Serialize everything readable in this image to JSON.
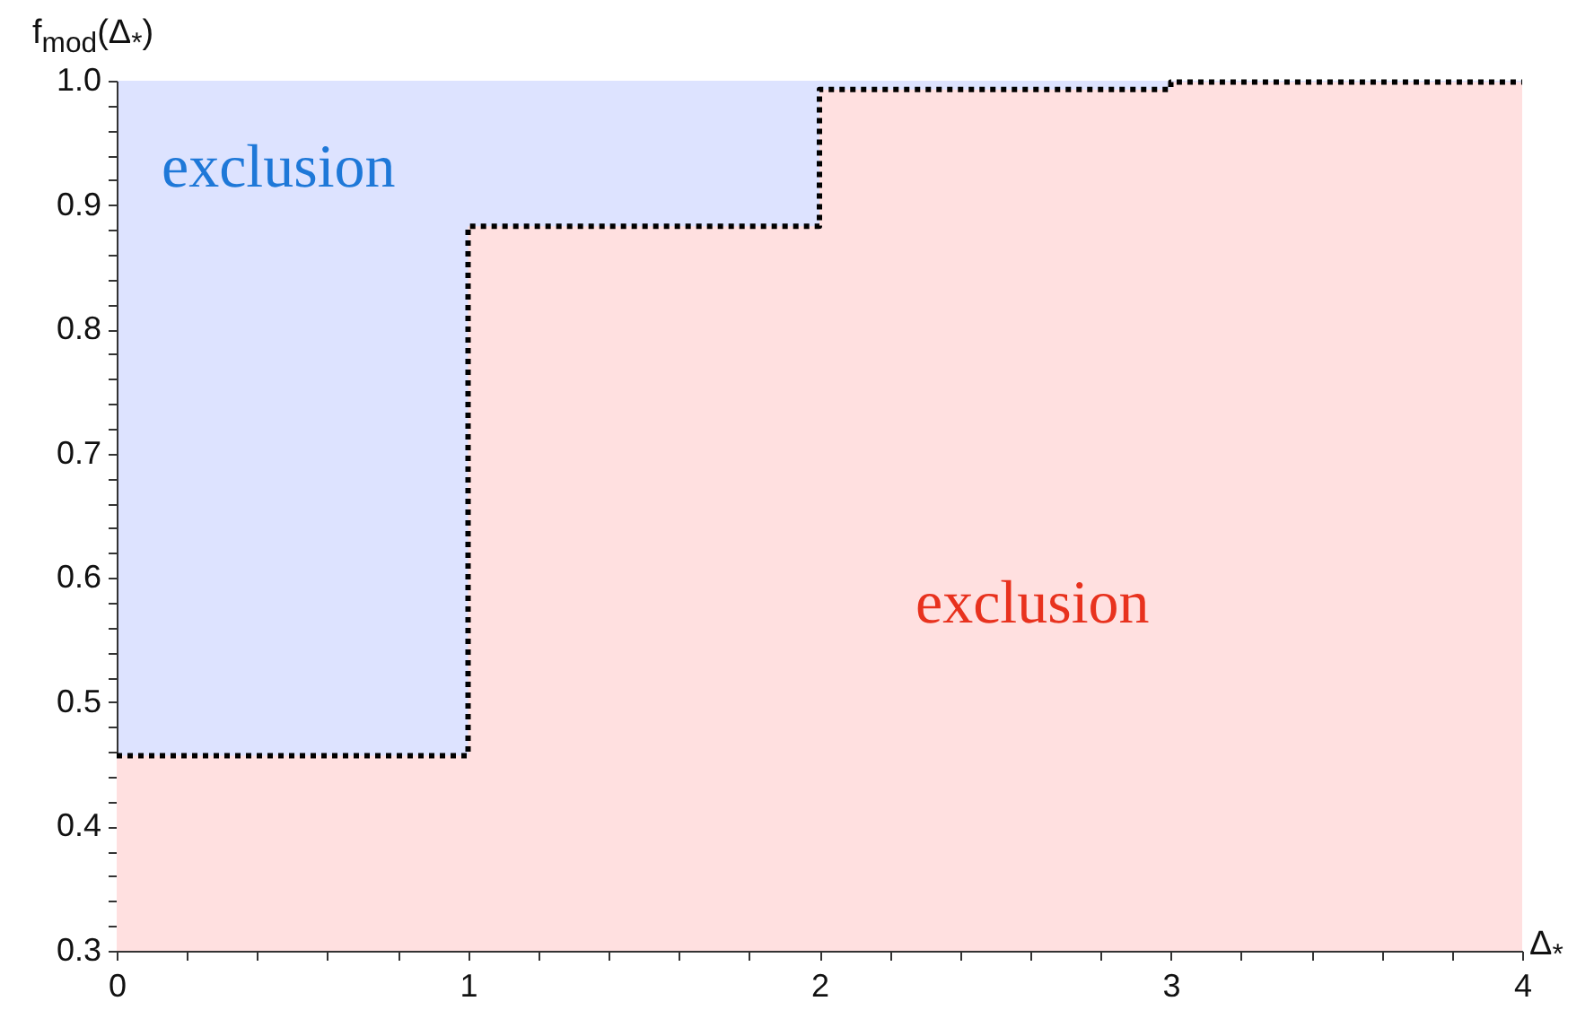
{
  "chart_data": {
    "type": "step",
    "xlabel": "Δ$_{*}$",
    "ylabel": "f$_{mod}$(Δ$_{*}$)",
    "x": [
      0,
      1,
      2,
      3,
      4
    ],
    "series": [
      {
        "type": "area",
        "color": "#ffe0e0",
        "values": [
          0.457,
          0.883,
          0.993,
          0.999,
          0.999
        ]
      },
      {
        "type": "step",
        "color": "#000000",
        "line_style": "dotted",
        "values": [
          0.457,
          0.883,
          0.993,
          0.999,
          0.999
        ]
      }
    ],
    "annotations": [
      "exclusion",
      "exclusion"
    ],
    "xlim": [
      0,
      4
    ],
    "ylim": [
      0.3,
      1.0
    ],
    "xticks": [
      0,
      {
        "value": 0.2,
        "label": null
      },
      {
        "value": 0.4,
        "label": null
      },
      {
        "value": 0.6,
        "label": null
      },
      {
        "value": 0.8,
        "label": null
      },
      1,
      {
        "value": 1.2,
        "label": null
      },
      {
        "value": 1.4,
        "label": null
      },
      {
        "value": 1.6,
        "label": null
      },
      {
        "value": 1.8,
        "label": null
      },
      2,
      {
        "value": 2.2,
        "label": null
      },
      {
        "value": 2.4,
        "label": null
      },
      {
        "value": 2.6,
        "label": null
      },
      {
        "value": 2.8,
        "label": null
      },
      3,
      {
        "value": 3.2,
        "label": null
      },
      {
        "value": 3.4,
        "label": null
      },
      {
        "value": 3.6,
        "label": null
      },
      {
        "value": 3.8,
        "label": null
      },
      4
    ],
    "yticks": [
      0.3,
      {
        "value": 0.32,
        "label": null
      },
      {
        "value": 0.34,
        "label": null
      },
      {
        "value": 0.36,
        "label": null
      },
      {
        "value": 0.38,
        "label": null
      },
      0.4,
      {
        "value": 0.42,
        "label": null
      },
      {
        "value": 0.44,
        "label": null
      },
      {
        "value": 0.46,
        "label": null
      },
      {
        "value": 0.48,
        "label": null
      },
      0.5,
      {
        "value": 0.52,
        "label": null
      },
      {
        "value": 0.54,
        "label": null
      },
      {
        "value": 0.56,
        "label": null
      },
      {
        "value": 0.58,
        "label": null
      },
      0.6,
      {
        "value": 0.62,
        "label": null
      },
      {
        "value": 0.64,
        "label": null
      },
      {
        "value": 0.66,
        "label": null
      },
      {
        "value": 0.68,
        "label": null
      },
      0.7,
      {
        "value": 0.72,
        "label": null
      },
      {
        "value": 0.74,
        "label": null
      },
      {
        "value": 0.76,
        "label": null
      },
      {
        "value": 0.78,
        "label": null
      },
      0.8,
      {
        "value": 0.82,
        "label": null
      },
      {
        "value": 0.84,
        "label": null
      },
      {
        "value": 0.86,
        "label": null
      },
      {
        "value": 0.88,
        "label": null
      },
      0.9,
      {
        "value": 0.92,
        "label": null
      },
      {
        "value": 0.94,
        "label": null
      },
      {
        "value": 0.96,
        "label": null
      },
      {
        "value": 0.98,
        "label": null
      },
      {
        "value": 1.0,
        "label": "1.0"
      }
    ],
    "grid": false,
    "marker": "none"
  }
}
